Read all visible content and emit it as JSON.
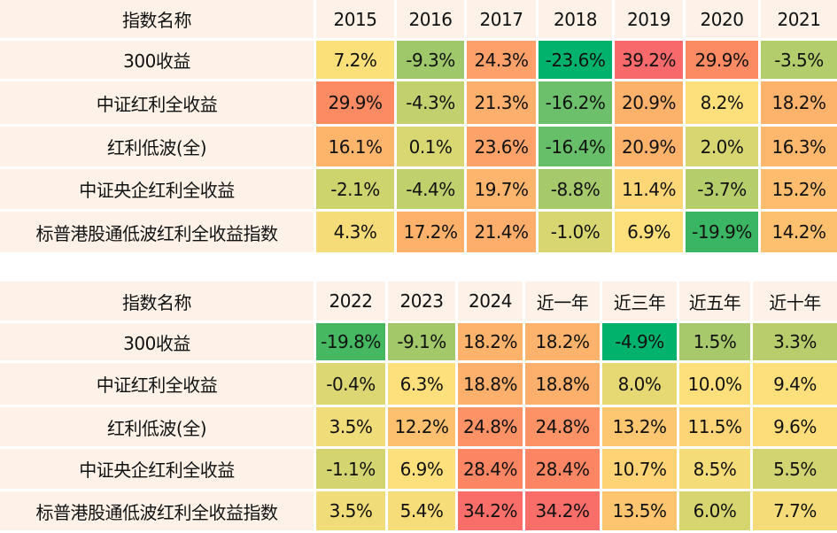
{
  "chart_data": [
    {
      "type": "table",
      "header": [
        "指数名称",
        "2015",
        "2016",
        "2017",
        "2018",
        "2019",
        "2020",
        "2021"
      ],
      "rows": [
        {
          "name": "300收益",
          "values": [
            "7.2%",
            "-9.3%",
            "24.3%",
            "-23.6%",
            "39.2%",
            "29.9%",
            "-3.5%"
          ],
          "colors": [
            "#fbe07a",
            "#9fc86a",
            "#fda06a",
            "#00b26b",
            "#f8696b",
            "#fc8a62",
            "#b4cd6c"
          ]
        },
        {
          "name": "中证红利全收益",
          "values": [
            "29.9%",
            "-4.3%",
            "21.3%",
            "-16.2%",
            "20.9%",
            "8.2%",
            "18.2%"
          ],
          "colors": [
            "#fc8a62",
            "#c2d16e",
            "#fdaf6d",
            "#6cc06b",
            "#fdb26c",
            "#fde07b",
            "#fdb36c"
          ]
        },
        {
          "name": "红利低波(全)",
          "values": [
            "16.1%",
            "0.1%",
            "23.6%",
            "-16.4%",
            "20.9%",
            "2.0%",
            "16.3%"
          ],
          "colors": [
            "#fdb56c",
            "#d9d771",
            "#fda36a",
            "#67bf6a",
            "#fdb26c",
            "#d8d671",
            "#fdb86d"
          ]
        },
        {
          "name": "中证央企红利全收益",
          "values": [
            "-2.1%",
            "-4.4%",
            "19.7%",
            "-8.8%",
            "11.4%",
            "-3.7%",
            "15.2%"
          ],
          "colors": [
            "#cdd46e",
            "#bfd06d",
            "#fdb46d",
            "#a5c96b",
            "#fdd677",
            "#b6cd6b",
            "#fdbc6e"
          ]
        },
        {
          "name": "标普港股通低波红利全收益指数",
          "values": [
            "4.3%",
            "17.2%",
            "21.4%",
            "-1.0%",
            "6.9%",
            "-19.9%",
            "14.2%"
          ],
          "colors": [
            "#f6dc79",
            "#fdb16b",
            "#fdae6c",
            "#d7d670",
            "#fde07b",
            "#3ab563",
            "#fdc06f"
          ]
        }
      ]
    },
    {
      "type": "table",
      "header": [
        "指数名称",
        "2022",
        "2023",
        "2024",
        "近一年",
        "近三年",
        "近五年",
        "近十年"
      ],
      "rows": [
        {
          "name": "300收益",
          "values": [
            "-19.8%",
            "-9.1%",
            "18.2%",
            "18.2%",
            "-4.9%",
            "1.5%",
            "3.3%"
          ],
          "colors": [
            "#47b862",
            "#a2c86a",
            "#fdb36c",
            "#fdb36c",
            "#00b26b",
            "#a8c96b",
            "#b9cd6d"
          ]
        },
        {
          "name": "中证红利全收益",
          "values": [
            "-0.4%",
            "6.3%",
            "18.8%",
            "18.8%",
            "8.0%",
            "10.0%",
            "9.4%"
          ],
          "colors": [
            "#dcd772",
            "#fde07c",
            "#fdaf6c",
            "#fdaf6c",
            "#e6d974",
            "#fde07b",
            "#fde07b"
          ]
        },
        {
          "name": "红利低波(全)",
          "values": [
            "3.5%",
            "12.2%",
            "24.8%",
            "24.8%",
            "13.2%",
            "11.5%",
            "9.6%"
          ],
          "colors": [
            "#f0dc78",
            "#fdc06f",
            "#fd9266",
            "#fd9266",
            "#fdc670",
            "#fdd476",
            "#fddd7a"
          ]
        },
        {
          "name": "中证央企红利全收益",
          "values": [
            "-1.1%",
            "6.9%",
            "28.4%",
            "28.4%",
            "10.7%",
            "8.5%",
            "5.5%"
          ],
          "colors": [
            "#d4d570",
            "#fde07c",
            "#fc8563",
            "#fc8563",
            "#fdd375",
            "#f4dc79",
            "#d2d471"
          ]
        },
        {
          "name": "标普港股通低波红利全收益指数",
          "values": [
            "3.5%",
            "5.4%",
            "34.2%",
            "34.2%",
            "13.5%",
            "6.0%",
            "7.7%"
          ],
          "colors": [
            "#f0dc78",
            "#f6dd7a",
            "#f96e69",
            "#f96e69",
            "#fdc570",
            "#d6d570",
            "#f5dc79"
          ]
        }
      ]
    }
  ],
  "colors": {
    "name_background": "#fdf1e8"
  }
}
